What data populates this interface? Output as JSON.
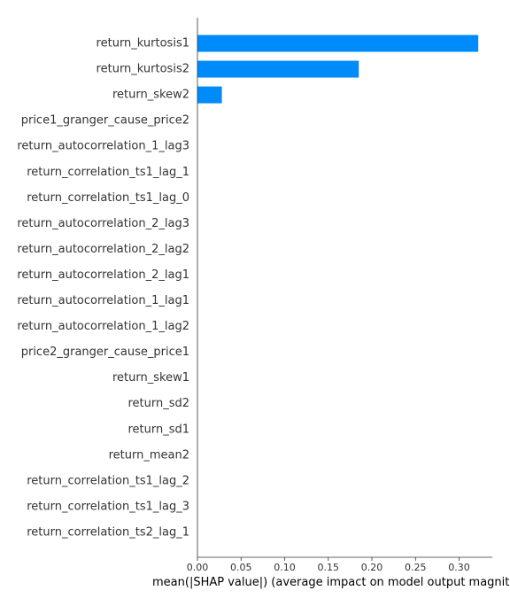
{
  "chart_data": {
    "type": "bar",
    "orientation": "horizontal",
    "title": "",
    "xlabel": "mean(|SHAP value|) (average impact on model output magnitude)",
    "ylabel": "",
    "xlim": [
      0,
      0.335
    ],
    "xticks": [
      0.0,
      0.05,
      0.1,
      0.15,
      0.2,
      0.25,
      0.3
    ],
    "xtick_labels": [
      "0.00",
      "0.05",
      "0.10",
      "0.15",
      "0.20",
      "0.25",
      "0.30"
    ],
    "grid": false,
    "bar_color": "#008bfb",
    "categories": [
      "return_kurtosis1",
      "return_kurtosis2",
      "return_skew2",
      "price1_granger_cause_price2",
      "return_autocorrelation_1_lag3",
      "return_correlation_ts1_lag_1",
      "return_correlation_ts1_lag_0",
      "return_autocorrelation_2_lag3",
      "return_autocorrelation_2_lag2",
      "return_autocorrelation_2_lag1",
      "return_autocorrelation_1_lag1",
      "return_autocorrelation_1_lag2",
      "price2_granger_cause_price1",
      "return_skew1",
      "return_sd2",
      "return_sd1",
      "return_mean2",
      "return_correlation_ts1_lag_2",
      "return_correlation_ts1_lag_3",
      "return_correlation_ts2_lag_1"
    ],
    "values": [
      0.322,
      0.185,
      0.028,
      0,
      0,
      0,
      0,
      0,
      0,
      0,
      0,
      0,
      0,
      0,
      0,
      0,
      0,
      0,
      0,
      0
    ]
  }
}
